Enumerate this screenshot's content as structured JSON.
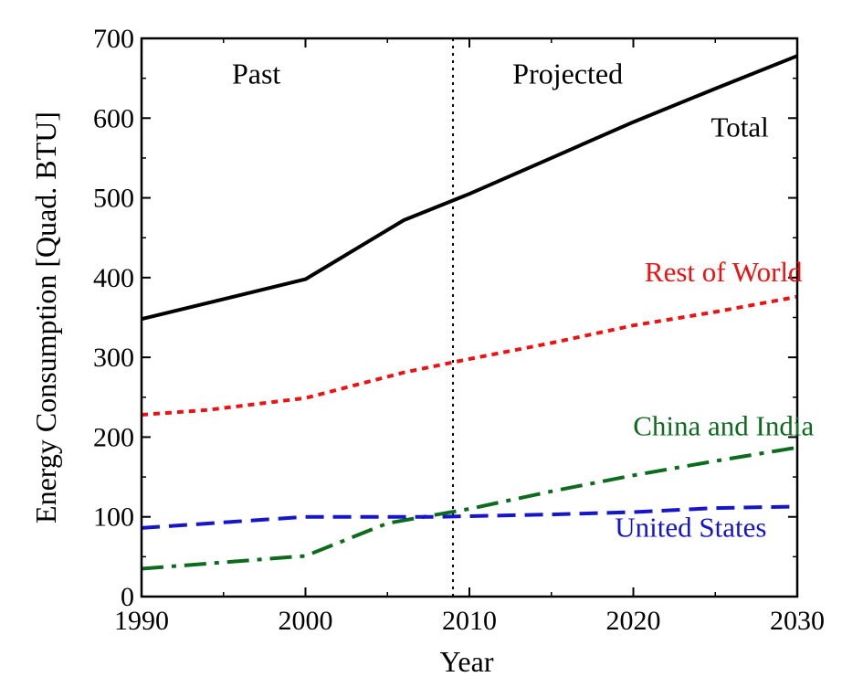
{
  "chart_data": {
    "type": "line",
    "title": "",
    "xlabel": "Year",
    "ylabel": "Energy Consumption [Quad. BTU]",
    "xlim": [
      1990,
      2030
    ],
    "ylim": [
      0,
      700
    ],
    "xticks": [
      1990,
      2000,
      2010,
      2020,
      2030
    ],
    "yticks": [
      0,
      100,
      200,
      300,
      400,
      500,
      600,
      700
    ],
    "xtick_labels": [
      "1990",
      "2000",
      "2010",
      "2020",
      "2030"
    ],
    "ytick_labels": [
      "0",
      "100",
      "200",
      "300",
      "400",
      "500",
      "600",
      "700"
    ],
    "grid": false,
    "legend": "none",
    "divider": {
      "x": 2009,
      "style": "dotted"
    },
    "regions": [
      {
        "label": "Past",
        "x": 1997,
        "y": 655
      },
      {
        "label": "Projected",
        "x": 2016,
        "y": 655
      }
    ],
    "series": [
      {
        "name": "Total",
        "color": "#000000",
        "dash": "solid",
        "label_x": 2026.5,
        "label_y": 577,
        "x": [
          1990,
          2000,
          2006,
          2010,
          2015,
          2020,
          2025,
          2030
        ],
        "y": [
          348,
          398,
          472,
          505,
          550,
          595,
          637,
          678
        ]
      },
      {
        "name": "Rest of World",
        "color": "#ee1111",
        "dash": "dotted",
        "label_x": 2025.5,
        "label_y": 395,
        "x": [
          1990,
          1994,
          2000,
          2006,
          2010,
          2015,
          2020,
          2025,
          2030
        ],
        "y": [
          228,
          234,
          249,
          281,
          298,
          318,
          340,
          357,
          376
        ]
      },
      {
        "name": "China and India",
        "color": "#0d6b1d",
        "dash": "dashdot",
        "label_x": 2025.5,
        "label_y": 202,
        "x": [
          1990,
          2000,
          2005,
          2010,
          2015,
          2020,
          2025,
          2030
        ],
        "y": [
          35,
          51,
          92,
          110,
          132,
          152,
          170,
          187
        ]
      },
      {
        "name": "United States",
        "color": "#1515cc",
        "dash": "dashed",
        "label_x": 2023.5,
        "label_y": 75,
        "x": [
          1990,
          2000,
          2008,
          2015,
          2020,
          2025,
          2030
        ],
        "y": [
          86,
          100,
          100,
          103,
          106,
          111,
          113
        ]
      }
    ]
  }
}
